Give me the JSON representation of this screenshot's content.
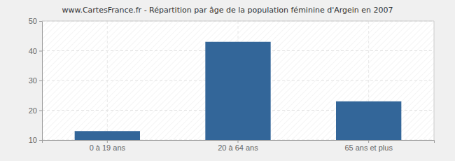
{
  "chart_data": {
    "type": "bar",
    "title": "www.CartesFrance.fr - Répartition par âge de la population féminine d'Argein en 2007",
    "categories": [
      "0 à 19 ans",
      "20 à 64 ans",
      "65 ans et plus"
    ],
    "values": [
      13,
      43,
      23
    ],
    "color": "#336699",
    "ylim": [
      10,
      50
    ],
    "yticks": [
      10,
      20,
      30,
      40,
      50
    ],
    "grid": true
  }
}
